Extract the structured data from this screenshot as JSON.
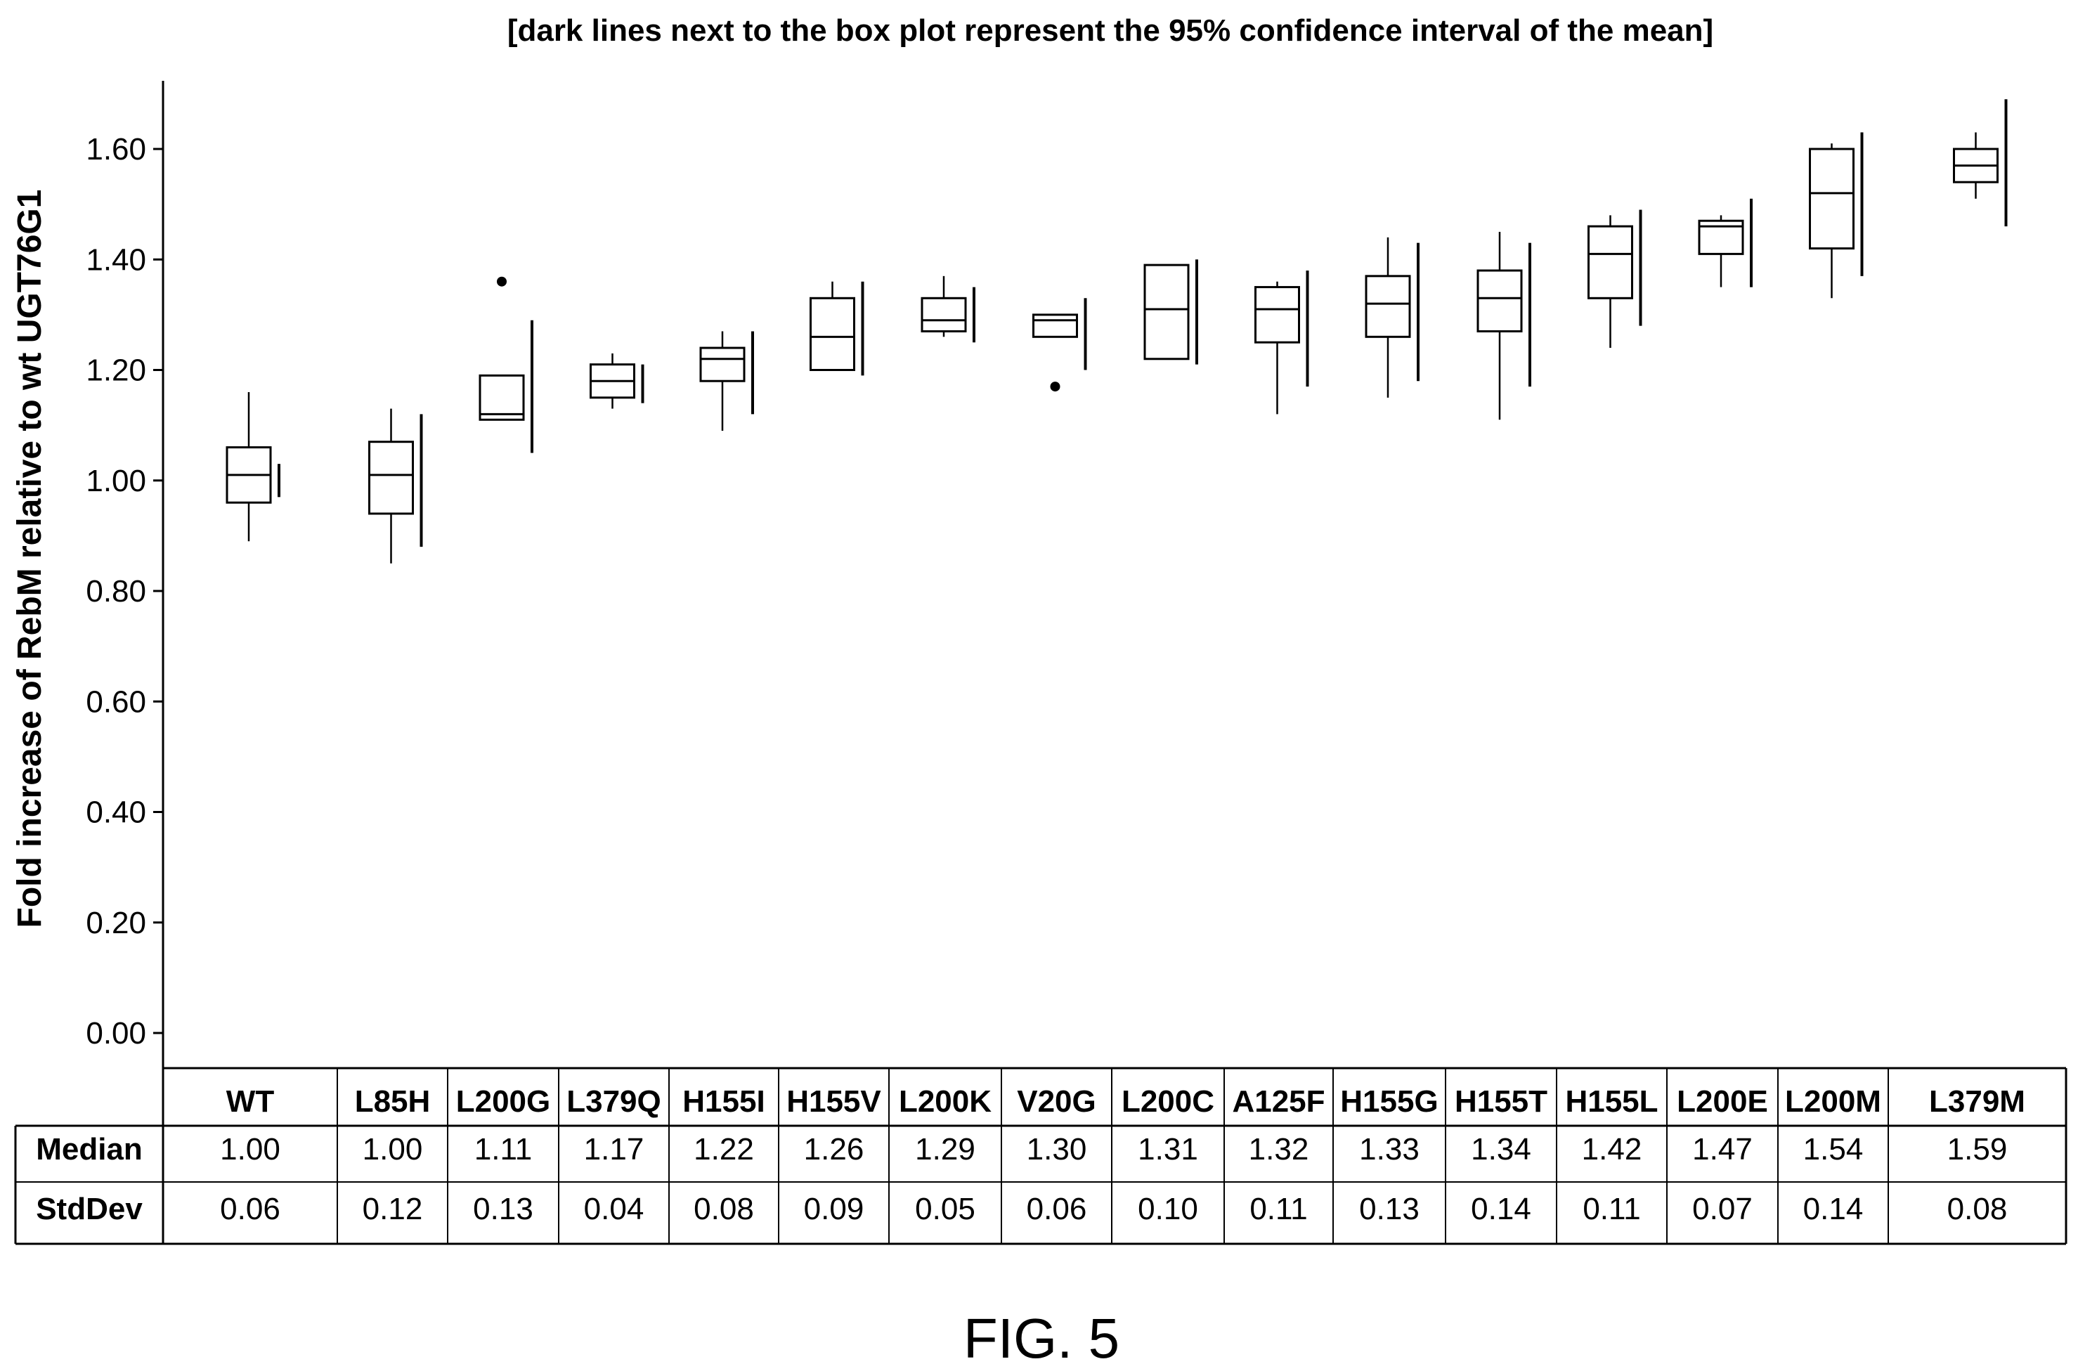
{
  "figure_label": "FIG. 5",
  "chart_data": {
    "type": "box",
    "title": "[dark lines next to the box plot represent the 95% confidence interval of the mean]",
    "ylabel": "Fold increase of RebM relative to wt UGT76G1",
    "xlabel": "",
    "ylim": [
      0,
      1.72
    ],
    "yticks": [
      "0.00",
      "0.20",
      "0.40",
      "0.60",
      "0.80",
      "1.00",
      "1.20",
      "1.40",
      "1.60"
    ],
    "grid": false,
    "categories": [
      "WT",
      "L85H",
      "L200G",
      "L379Q",
      "H155I",
      "H155V",
      "L200K",
      "V20G",
      "L200C",
      "A125F",
      "H155G",
      "H155T",
      "H155L",
      "L200E",
      "L200M",
      "L379M"
    ],
    "boxes": [
      {
        "min": 0.89,
        "q1": 0.96,
        "median": 1.01,
        "q3": 1.06,
        "max": 1.16,
        "outliers": [],
        "ci": [
          0.97,
          1.03
        ]
      },
      {
        "min": 0.85,
        "q1": 0.94,
        "median": 1.01,
        "q3": 1.07,
        "max": 1.13,
        "outliers": [],
        "ci": [
          0.88,
          1.12
        ]
      },
      {
        "min": 1.11,
        "q1": 1.11,
        "median": 1.12,
        "q3": 1.19,
        "max": 1.19,
        "outliers": [
          1.36
        ],
        "ci": [
          1.05,
          1.29
        ]
      },
      {
        "min": 1.13,
        "q1": 1.15,
        "median": 1.18,
        "q3": 1.21,
        "max": 1.23,
        "outliers": [],
        "ci": [
          1.14,
          1.21
        ]
      },
      {
        "min": 1.09,
        "q1": 1.18,
        "median": 1.22,
        "q3": 1.24,
        "max": 1.27,
        "outliers": [],
        "ci": [
          1.12,
          1.27
        ]
      },
      {
        "min": 1.2,
        "q1": 1.2,
        "median": 1.26,
        "q3": 1.33,
        "max": 1.36,
        "outliers": [],
        "ci": [
          1.19,
          1.36
        ]
      },
      {
        "min": 1.26,
        "q1": 1.27,
        "median": 1.29,
        "q3": 1.33,
        "max": 1.37,
        "outliers": [],
        "ci": [
          1.25,
          1.35
        ]
      },
      {
        "min": 1.26,
        "q1": 1.26,
        "median": 1.29,
        "q3": 1.3,
        "max": 1.3,
        "outliers": [
          1.17
        ],
        "ci": [
          1.2,
          1.33
        ]
      },
      {
        "min": 1.22,
        "q1": 1.22,
        "median": 1.31,
        "q3": 1.39,
        "max": 1.39,
        "outliers": [],
        "ci": [
          1.21,
          1.4
        ]
      },
      {
        "min": 1.12,
        "q1": 1.25,
        "median": 1.31,
        "q3": 1.35,
        "max": 1.36,
        "outliers": [],
        "ci": [
          1.17,
          1.38
        ]
      },
      {
        "min": 1.15,
        "q1": 1.26,
        "median": 1.32,
        "q3": 1.37,
        "max": 1.44,
        "outliers": [],
        "ci": [
          1.18,
          1.43
        ]
      },
      {
        "min": 1.11,
        "q1": 1.27,
        "median": 1.33,
        "q3": 1.38,
        "max": 1.45,
        "outliers": [],
        "ci": [
          1.17,
          1.43
        ]
      },
      {
        "min": 1.24,
        "q1": 1.33,
        "median": 1.41,
        "q3": 1.46,
        "max": 1.48,
        "outliers": [],
        "ci": [
          1.28,
          1.49
        ]
      },
      {
        "min": 1.35,
        "q1": 1.41,
        "median": 1.46,
        "q3": 1.47,
        "max": 1.48,
        "outliers": [],
        "ci": [
          1.35,
          1.51
        ]
      },
      {
        "min": 1.33,
        "q1": 1.42,
        "median": 1.52,
        "q3": 1.6,
        "max": 1.61,
        "outliers": [],
        "ci": [
          1.37,
          1.63
        ]
      },
      {
        "min": 1.51,
        "q1": 1.54,
        "median": 1.57,
        "q3": 1.6,
        "max": 1.63,
        "outliers": [],
        "ci": [
          1.46,
          1.69
        ]
      }
    ],
    "table": {
      "row_labels": [
        "Median",
        "StdDev"
      ],
      "median": [
        "1.00",
        "1.00",
        "1.11",
        "1.17",
        "1.22",
        "1.26",
        "1.29",
        "1.30",
        "1.31",
        "1.32",
        "1.33",
        "1.34",
        "1.42",
        "1.47",
        "1.54",
        "1.59"
      ],
      "stddev": [
        "0.06",
        "0.12",
        "0.13",
        "0.04",
        "0.08",
        "0.09",
        "0.05",
        "0.06",
        "0.10",
        "0.11",
        "0.13",
        "0.14",
        "0.11",
        "0.07",
        "0.14",
        "0.08"
      ]
    }
  }
}
